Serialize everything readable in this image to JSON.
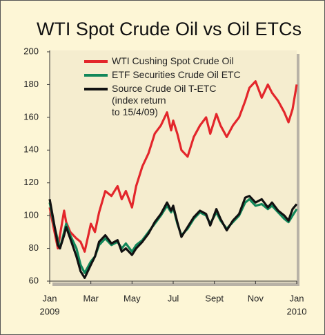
{
  "chart_data": {
    "type": "line",
    "title": "WTI Spot Crude Oil vs Oil ETCs",
    "x": [
      0,
      0.2,
      0.4,
      0.5,
      0.7,
      0.8,
      1.0,
      1.3,
      1.5,
      1.7,
      2.0,
      2.2,
      2.4,
      2.7,
      3.0,
      3.3,
      3.5,
      3.7,
      4.0,
      4.2,
      4.5,
      4.8,
      5.1,
      5.4,
      5.7,
      5.9,
      6.0,
      6.2,
      6.4,
      6.7,
      7.0,
      7.3,
      7.6,
      7.8,
      8.1,
      8.3,
      8.6,
      8.9,
      9.2,
      9.5,
      9.7,
      10.0,
      10.3,
      10.6,
      10.8,
      11.1,
      11.4,
      11.6,
      11.8,
      12.0
    ],
    "series": [
      {
        "name": "WTI Cushing Spot Crude Oil",
        "color": "#e3262b",
        "values": [
          105,
          92,
          80,
          88,
          103,
          96,
          90,
          86,
          84,
          78,
          95,
          90,
          102,
          115,
          112,
          118,
          110,
          115,
          105,
          118,
          130,
          138,
          150,
          155,
          163,
          152,
          158,
          150,
          140,
          136,
          148,
          155,
          160,
          150,
          162,
          155,
          148,
          155,
          160,
          170,
          178,
          182,
          172,
          180,
          175,
          170,
          163,
          157,
          165,
          180
        ]
      },
      {
        "name": "ETF Securities Crude Oil ETC",
        "color": "#11875a",
        "values": [
          108,
          95,
          85,
          80,
          90,
          95,
          88,
          80,
          70,
          65,
          72,
          75,
          82,
          86,
          82,
          84,
          80,
          83,
          78,
          82,
          85,
          90,
          95,
          100,
          106,
          102,
          105,
          95,
          88,
          92,
          98,
          102,
          100,
          95,
          102,
          97,
          92,
          96,
          100,
          108,
          110,
          106,
          107,
          104,
          106,
          102,
          98,
          96,
          100,
          104
        ]
      },
      {
        "name": "Source Crude Oil T-ETC\n(index return\nto 15/4/09)",
        "color": "#111111",
        "values": [
          110,
          96,
          82,
          80,
          88,
          93,
          86,
          75,
          66,
          62,
          70,
          75,
          84,
          88,
          83,
          85,
          78,
          80,
          76,
          80,
          84,
          89,
          96,
          101,
          108,
          103,
          106,
          96,
          87,
          93,
          99,
          103,
          101,
          94,
          104,
          98,
          91,
          97,
          101,
          111,
          112,
          108,
          110,
          105,
          108,
          103,
          100,
          97,
          104,
          107
        ]
      }
    ],
    "xlim": [
      0,
      12
    ],
    "xticks": [
      {
        "value": 0,
        "label": "Jan"
      },
      {
        "value": 2,
        "label": "Mar"
      },
      {
        "value": 4,
        "label": "May"
      },
      {
        "value": 6,
        "label": "Jul"
      },
      {
        "value": 8,
        "label": "Sept"
      },
      {
        "value": 10,
        "label": "Nov"
      },
      {
        "value": 12,
        "label": "Jan"
      }
    ],
    "x_year_labels": [
      "2009",
      "2010"
    ],
    "ylim": [
      60,
      200
    ],
    "yticks": [
      60,
      80,
      100,
      120,
      140,
      160,
      180,
      200
    ],
    "grid": false
  }
}
